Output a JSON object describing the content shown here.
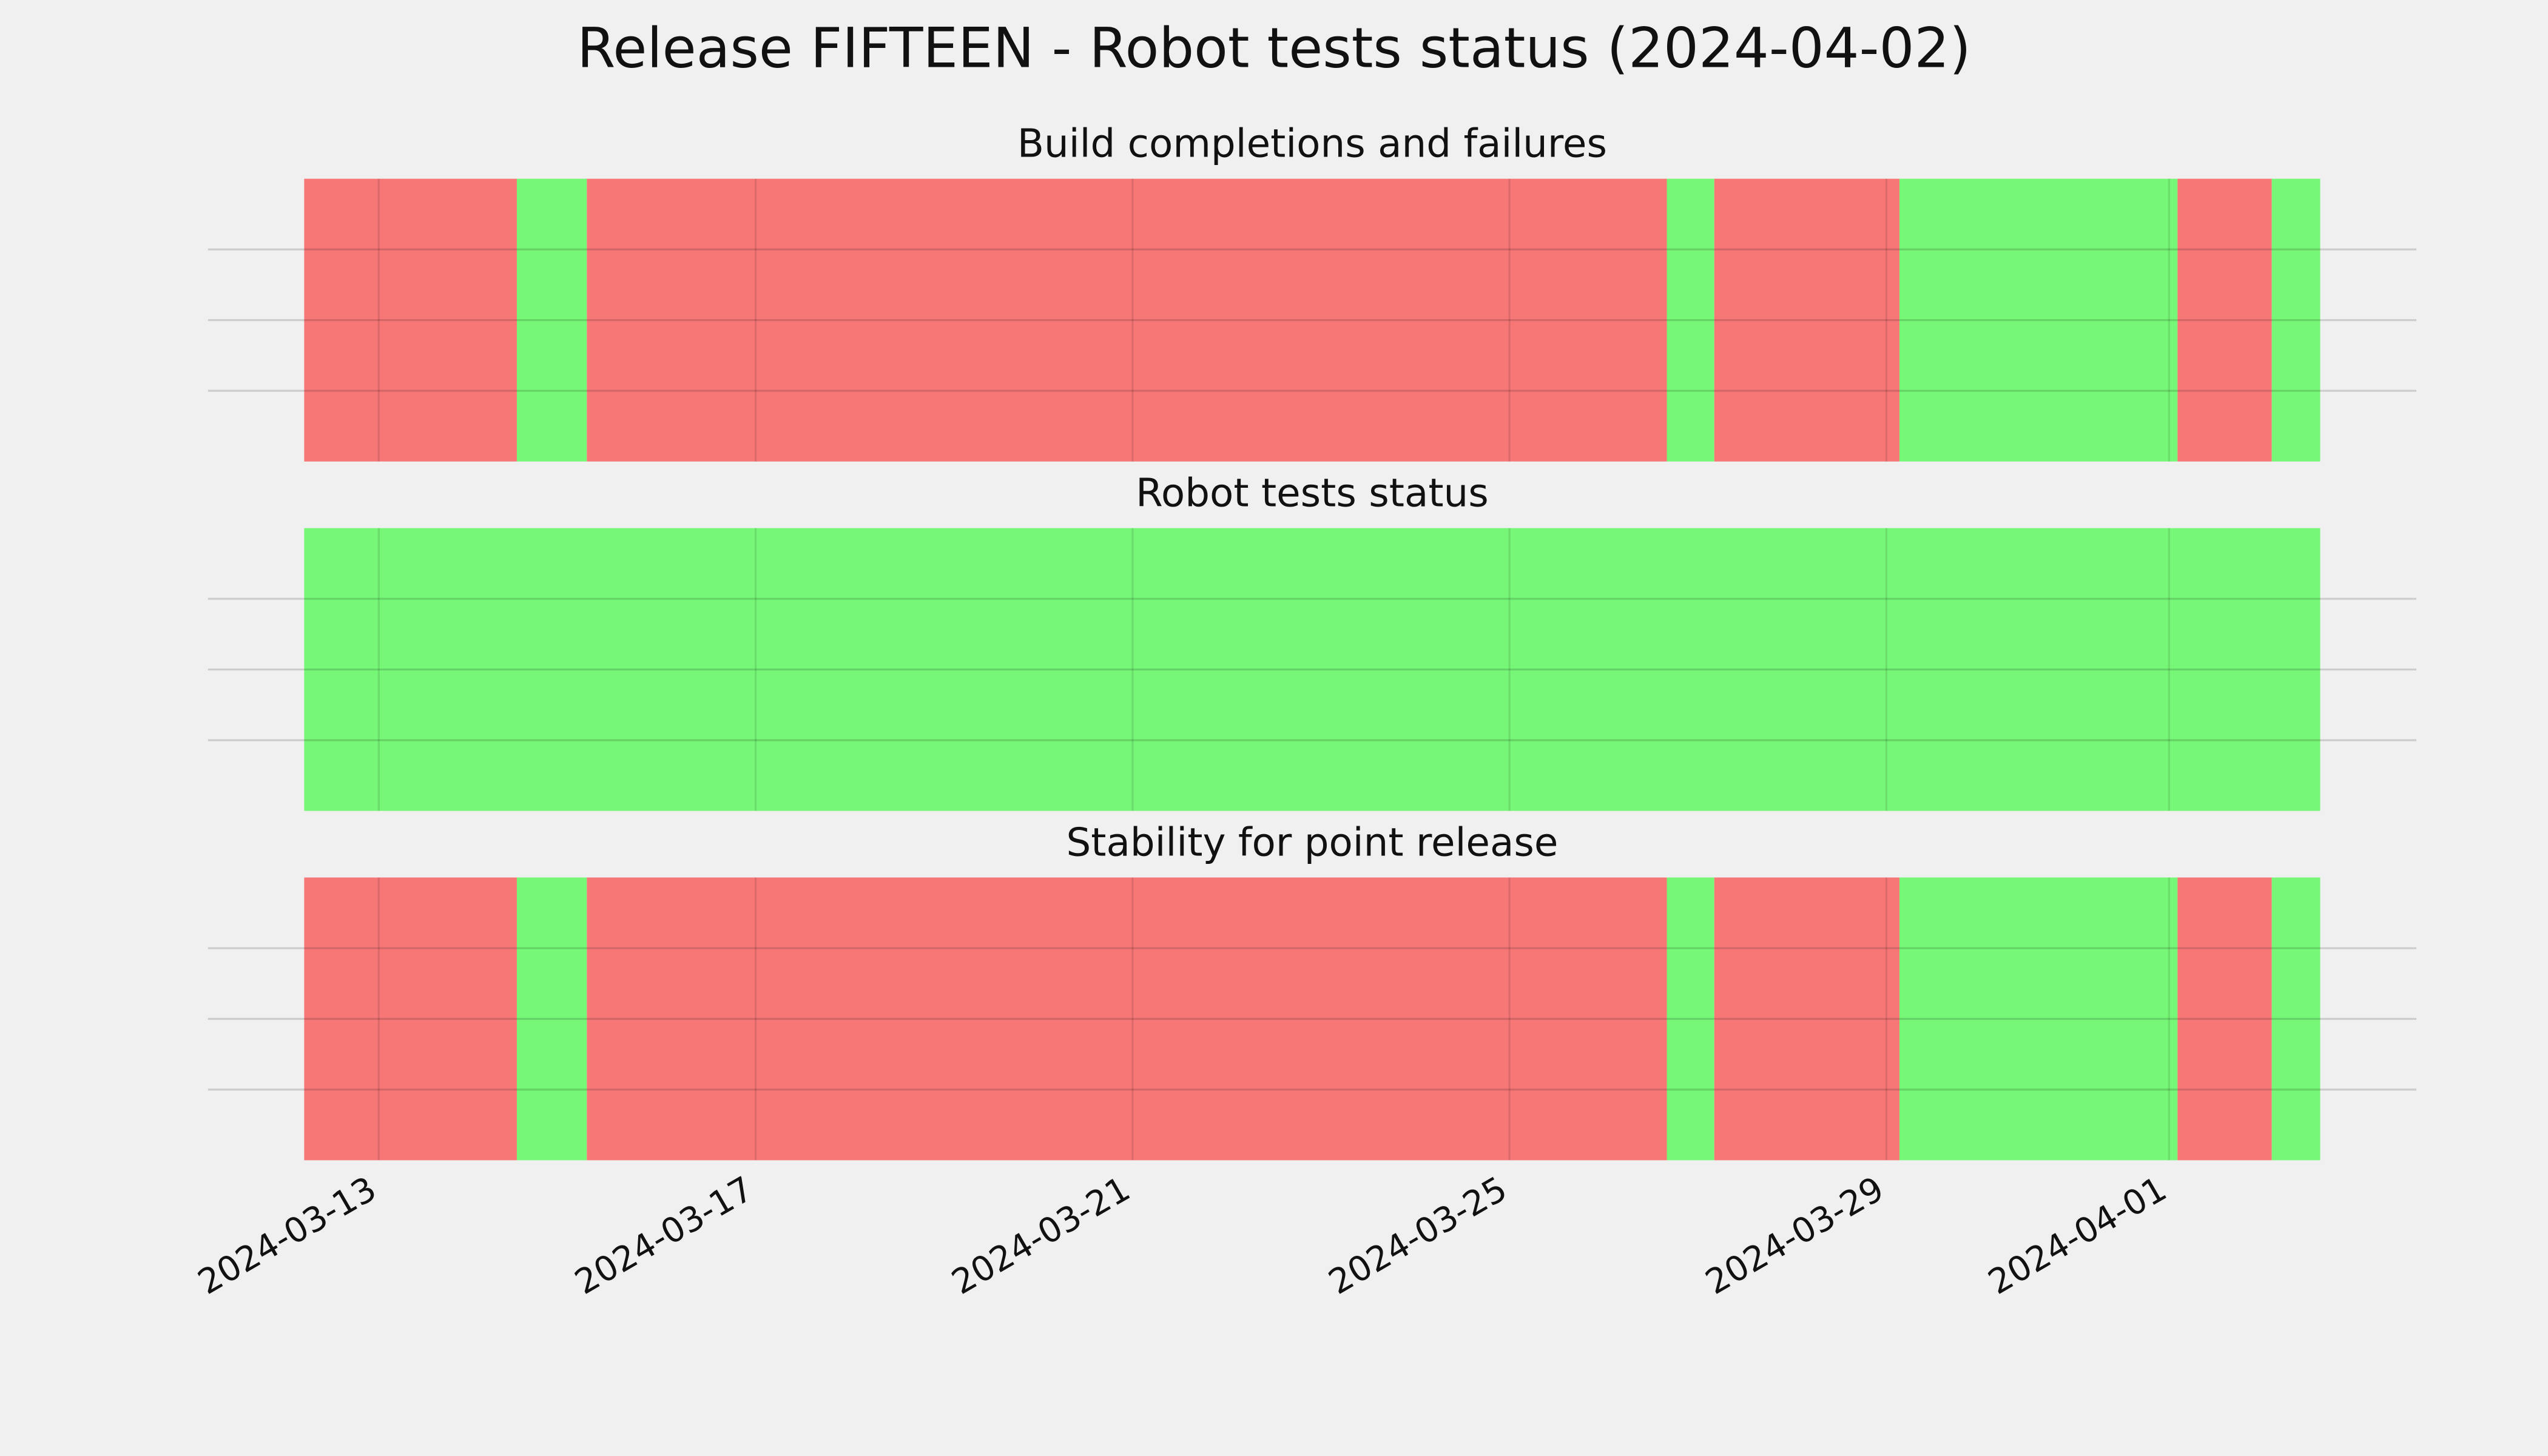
{
  "title": "Release FIFTEEN - Robot tests status (2024-04-02)",
  "chart_data": [
    {
      "type": "timeline",
      "title": "Build completions and failures",
      "xlim": [
        "2024-03-11T04:30",
        "2024-04-03T15:00"
      ],
      "xticks": [
        "2024-03-13",
        "2024-03-17",
        "2024-03-21",
        "2024-03-25",
        "2024-03-29",
        "2024-04-01"
      ],
      "ylim": [
        0,
        1
      ],
      "yticks": [
        0.25,
        0.5,
        0.75
      ],
      "grid": true,
      "segments": [
        {
          "start": "2024-03-12T05:00",
          "end": "2024-03-14T11:10",
          "color": "#f77777"
        },
        {
          "start": "2024-03-14T11:10",
          "end": "2024-03-15T05:00",
          "color": "#77f777"
        },
        {
          "start": "2024-03-15T05:00",
          "end": "2024-03-26T16:05",
          "color": "#f77777"
        },
        {
          "start": "2024-03-26T16:05",
          "end": "2024-03-27T04:10",
          "color": "#77f777"
        },
        {
          "start": "2024-03-27T04:10",
          "end": "2024-03-29T03:20",
          "color": "#f77777"
        },
        {
          "start": "2024-03-29T03:20",
          "end": "2024-04-01T02:10",
          "color": "#77f777"
        },
        {
          "start": "2024-04-01T02:10",
          "end": "2024-04-02T02:10",
          "color": "#f77777"
        },
        {
          "start": "2024-04-02T02:10",
          "end": "2024-04-02T14:30",
          "color": "#77f777"
        }
      ]
    },
    {
      "type": "timeline",
      "title": "Robot tests status",
      "xlim": [
        "2024-03-11T04:30",
        "2024-04-03T15:00"
      ],
      "xticks": [
        "2024-03-13",
        "2024-03-17",
        "2024-03-21",
        "2024-03-25",
        "2024-03-29",
        "2024-04-01"
      ],
      "ylim": [
        0,
        1
      ],
      "yticks": [
        0.25,
        0.5,
        0.75
      ],
      "grid": true,
      "segments": [
        {
          "start": "2024-03-12T05:00",
          "end": "2024-04-02T14:30",
          "color": "#77f777"
        }
      ]
    },
    {
      "type": "timeline",
      "title": "Stability for point release",
      "xlim": [
        "2024-03-11T04:30",
        "2024-04-03T15:00"
      ],
      "xticks": [
        "2024-03-13",
        "2024-03-17",
        "2024-03-21",
        "2024-03-25",
        "2024-03-29",
        "2024-04-01"
      ],
      "ylim": [
        0,
        1
      ],
      "yticks": [
        0.25,
        0.5,
        0.75
      ],
      "grid": true,
      "segments": [
        {
          "start": "2024-03-12T05:00",
          "end": "2024-03-14T11:10",
          "color": "#f77777"
        },
        {
          "start": "2024-03-14T11:10",
          "end": "2024-03-15T05:00",
          "color": "#77f777"
        },
        {
          "start": "2024-03-15T05:00",
          "end": "2024-03-26T16:05",
          "color": "#f77777"
        },
        {
          "start": "2024-03-26T16:05",
          "end": "2024-03-27T04:10",
          "color": "#77f777"
        },
        {
          "start": "2024-03-27T04:10",
          "end": "2024-03-29T03:20",
          "color": "#f77777"
        },
        {
          "start": "2024-03-29T03:20",
          "end": "2024-04-01T02:10",
          "color": "#77f777"
        },
        {
          "start": "2024-04-01T02:10",
          "end": "2024-04-02T02:10",
          "color": "#f77777"
        },
        {
          "start": "2024-04-02T02:10",
          "end": "2024-04-02T14:30",
          "color": "#77f777"
        }
      ]
    }
  ]
}
